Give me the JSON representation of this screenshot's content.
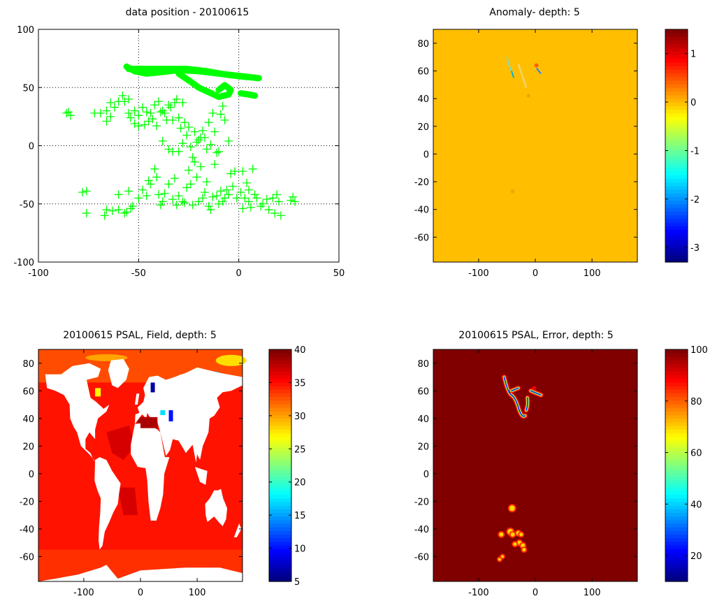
{
  "chart_data": [
    {
      "type": "scatter",
      "title": "data position - 20100615",
      "xlim": [
        -100,
        50
      ],
      "ylim": [
        -100,
        100
      ],
      "xticks": [
        -100,
        -50,
        0,
        50
      ],
      "yticks": [
        -100,
        -50,
        0,
        50,
        100
      ],
      "grid": true,
      "marker": "+",
      "marker_color": "#00ff00",
      "points": [
        [
          -86,
          28
        ],
        [
          -84,
          26
        ],
        [
          -85,
          29
        ],
        [
          -78,
          -40
        ],
        [
          -76,
          -39
        ],
        [
          -76,
          -58
        ],
        [
          -67,
          -60
        ],
        [
          -66,
          -55
        ],
        [
          -63,
          -56
        ],
        [
          -60,
          -55
        ],
        [
          -57,
          -58
        ],
        [
          -56,
          -57
        ],
        [
          -54,
          -54
        ],
        [
          -72,
          28
        ],
        [
          -69,
          28
        ],
        [
          -66,
          30
        ],
        [
          -66,
          21
        ],
        [
          -64,
          25
        ],
        [
          -64,
          37
        ],
        [
          -62,
          33
        ],
        [
          -60,
          38
        ],
        [
          -58,
          43
        ],
        [
          -57,
          38
        ],
        [
          -55,
          40
        ],
        [
          -55,
          28
        ],
        [
          -54,
          24
        ],
        [
          -52,
          30
        ],
        [
          -52,
          19
        ],
        [
          -50,
          26
        ],
        [
          -50,
          17
        ],
        [
          -48,
          33
        ],
        [
          -47,
          18
        ],
        [
          -46,
          29
        ],
        [
          -45,
          21
        ],
        [
          -44,
          28
        ],
        [
          -43,
          23
        ],
        [
          -42,
          35
        ],
        [
          -41,
          17
        ],
        [
          -40,
          38
        ],
        [
          -39,
          29
        ],
        [
          -38,
          30
        ],
        [
          -37,
          28
        ],
        [
          -36,
          22
        ],
        [
          -35,
          35
        ],
        [
          -34,
          33
        ],
        [
          -33,
          22
        ],
        [
          -32,
          37
        ],
        [
          -31,
          40
        ],
        [
          -30,
          24
        ],
        [
          -29,
          15
        ],
        [
          -28,
          37
        ],
        [
          -27,
          20
        ],
        [
          -26,
          9
        ],
        [
          -25,
          16
        ],
        [
          -24,
          -1
        ],
        [
          -23,
          -10
        ],
        [
          -22,
          12
        ],
        [
          -21,
          3
        ],
        [
          -20,
          5
        ],
        [
          -19,
          7
        ],
        [
          -18,
          13
        ],
        [
          -17,
          7
        ],
        [
          -16,
          -3
        ],
        [
          -15,
          20
        ],
        [
          -14,
          1
        ],
        [
          -13,
          28
        ],
        [
          -12,
          12
        ],
        [
          -11,
          -6
        ],
        [
          -10,
          -5
        ],
        [
          -9,
          27
        ],
        [
          -8,
          34
        ],
        [
          -7,
          22
        ],
        [
          -5,
          4
        ],
        [
          -38,
          4
        ],
        [
          -35,
          -3
        ],
        [
          -33,
          -5
        ],
        [
          -30,
          -5
        ],
        [
          -28,
          2
        ],
        [
          -60,
          -42
        ],
        [
          -55,
          -39
        ],
        [
          -53,
          -52
        ],
        [
          -50,
          -45
        ],
        [
          -48,
          -38
        ],
        [
          -46,
          -43
        ],
        [
          -45,
          -30
        ],
        [
          -44,
          -33
        ],
        [
          -42,
          -20
        ],
        [
          -41,
          -27
        ],
        [
          -40,
          -42
        ],
        [
          -39,
          -51
        ],
        [
          -38,
          -48
        ],
        [
          -37,
          -41
        ],
        [
          -35,
          -33
        ],
        [
          -33,
          -46
        ],
        [
          -32,
          -28
        ],
        [
          -31,
          -51
        ],
        [
          -30,
          -43
        ],
        [
          -28,
          -48
        ],
        [
          -27,
          -49
        ],
        [
          -26,
          -36
        ],
        [
          -25,
          -21
        ],
        [
          -24,
          -33
        ],
        [
          -23,
          -51
        ],
        [
          -22,
          -14
        ],
        [
          -21,
          -27
        ],
        [
          -20,
          -48
        ],
        [
          -19,
          -18
        ],
        [
          -18,
          -45
        ],
        [
          -17,
          -40
        ],
        [
          -16,
          -31
        ],
        [
          -15,
          -52
        ],
        [
          -14,
          -55
        ],
        [
          -13,
          -44
        ],
        [
          -12,
          -16
        ],
        [
          -11,
          -43
        ],
        [
          -10,
          -50
        ],
        [
          -9,
          -39
        ],
        [
          -8,
          -48
        ],
        [
          -7,
          -45
        ],
        [
          -6,
          -38
        ],
        [
          -5,
          -42
        ],
        [
          -4,
          -24
        ],
        [
          -3,
          -35
        ],
        [
          -2,
          -22
        ],
        [
          -1,
          -45
        ],
        [
          1,
          -40
        ],
        [
          2,
          -22
        ],
        [
          3,
          -45
        ],
        [
          4,
          -32
        ],
        [
          5,
          -48
        ],
        [
          6,
          -53
        ],
        [
          7,
          -20
        ],
        [
          8,
          -42
        ],
        [
          9,
          -45
        ],
        [
          11,
          -52
        ],
        [
          12,
          -50
        ],
        [
          14,
          -46
        ],
        [
          15,
          -55
        ],
        [
          17,
          -45
        ],
        [
          18,
          -58
        ],
        [
          19,
          -42
        ],
        [
          20,
          -48
        ],
        [
          21,
          -60
        ],
        [
          26,
          -47
        ],
        [
          27,
          -44
        ],
        [
          28,
          -48
        ],
        [
          5,
          -38
        ],
        [
          2,
          -54
        ]
      ],
      "tracks": [
        [
          [
            -56,
            68
          ],
          [
            -52,
            64
          ],
          [
            -46,
            62
          ],
          [
            -40,
            63
          ],
          [
            -30,
            65
          ],
          [
            -20,
            64
          ],
          [
            -10,
            62
          ],
          [
            0,
            60
          ],
          [
            10,
            58
          ]
        ],
        [
          [
            -55,
            66
          ],
          [
            -48,
            66
          ],
          [
            -38,
            66
          ],
          [
            -26,
            66
          ],
          [
            -16,
            64
          ],
          [
            -6,
            61
          ],
          [
            4,
            59
          ]
        ],
        [
          [
            -30,
            62
          ],
          [
            -24,
            55
          ],
          [
            -20,
            50
          ],
          [
            -15,
            46
          ],
          [
            -10,
            42
          ],
          [
            -5,
            44
          ],
          [
            -4,
            48
          ],
          [
            -7,
            52
          ],
          [
            -10,
            48
          ]
        ],
        [
          [
            1,
            45
          ],
          [
            5,
            44
          ],
          [
            8,
            43
          ]
        ]
      ]
    },
    {
      "type": "heatmap",
      "title": "Anomaly- depth: 5",
      "xlim": [
        -180,
        180
      ],
      "ylim": [
        -78,
        90
      ],
      "xticks": [
        -100,
        0,
        100
      ],
      "yticks": [
        -60,
        -40,
        -20,
        0,
        20,
        40,
        60,
        80
      ],
      "colorbar_ticks": [
        -3,
        -2,
        -1,
        0,
        1
      ],
      "colorbar_range": [
        -3.3,
        1.5
      ],
      "background_value": 0
    },
    {
      "type": "heatmap",
      "title": "20100615 PSAL, Field, depth: 5",
      "xlim": [
        -180,
        180
      ],
      "ylim": [
        -78,
        90
      ],
      "xticks": [
        -100,
        0,
        100
      ],
      "yticks": [
        -60,
        -40,
        -20,
        0,
        20,
        40,
        60,
        80
      ],
      "colorbar_ticks": [
        5,
        10,
        15,
        20,
        25,
        30,
        35,
        40
      ],
      "colorbar_range": [
        5,
        40
      ],
      "background_value": 35
    },
    {
      "type": "heatmap",
      "title": "20100615 PSAL, Error, depth: 5",
      "xlim": [
        -180,
        180
      ],
      "ylim": [
        -78,
        90
      ],
      "xticks": [
        -100,
        0,
        100
      ],
      "yticks": [
        -60,
        -40,
        -20,
        0,
        20,
        40,
        60,
        80
      ],
      "colorbar_ticks": [
        20,
        40,
        60,
        80,
        100
      ],
      "colorbar_range": [
        10,
        100
      ],
      "background_value": 100
    }
  ]
}
